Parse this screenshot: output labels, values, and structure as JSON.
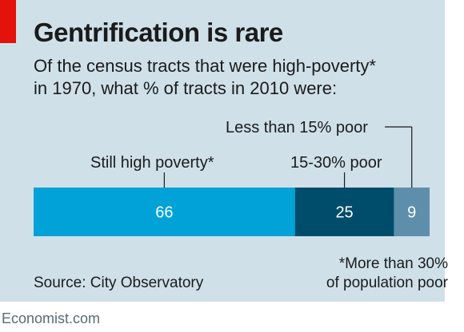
{
  "header": {
    "title": "Gentrification is rare",
    "subtitle_line1": "Of the census tracts that were high-poverty*",
    "subtitle_line2": "in 1970, what % of tracts in 2010 were:"
  },
  "colors": {
    "still_high": "#00a2d8",
    "mid": "#004d6b",
    "low": "#5d8fab",
    "background": "#cfe0e9",
    "accent": "#e3120b"
  },
  "chart_data": {
    "type": "bar",
    "orientation": "horizontal-stacked",
    "total": 100,
    "segments": [
      {
        "label": "Still high poverty*",
        "value": 66,
        "value_label": "66"
      },
      {
        "label": "15-30% poor",
        "value": 25,
        "value_label": "25"
      },
      {
        "label": "Less than 15% poor",
        "value": 9,
        "value_label": "9"
      }
    ]
  },
  "footer": {
    "source": "Source: City Observatory",
    "footnote_line1": "*More than 30%",
    "footnote_line2": "of population poor",
    "brand": "Economist.com"
  }
}
